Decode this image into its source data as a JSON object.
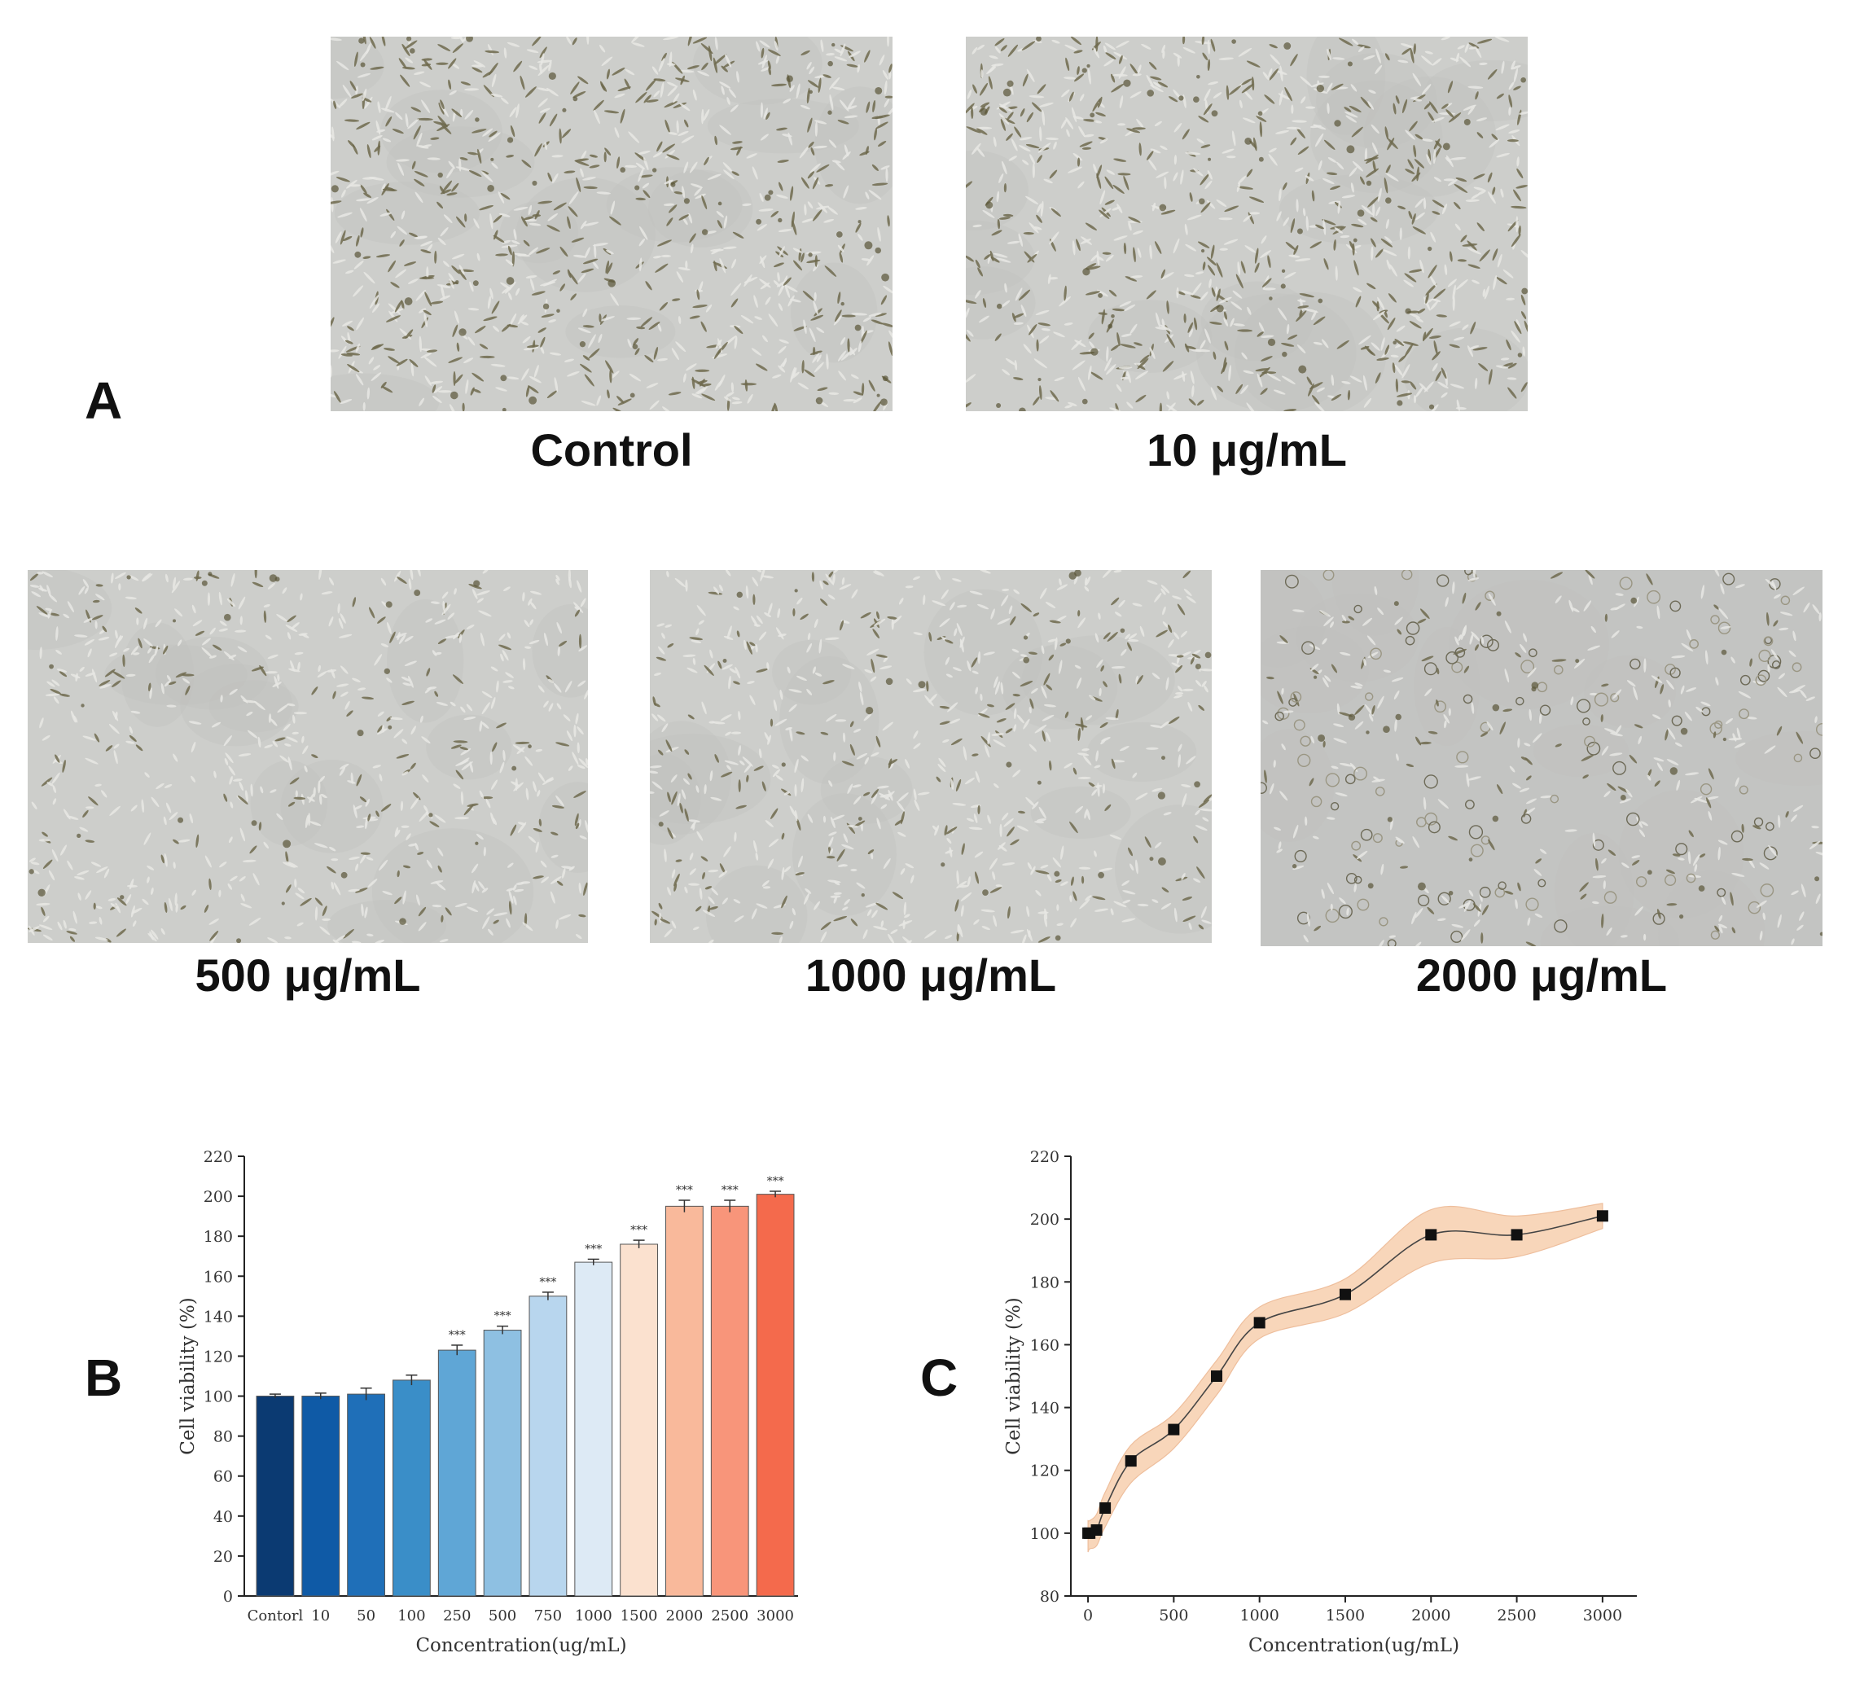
{
  "panel_a": {
    "letter": "A",
    "images": [
      {
        "caption": "Control",
        "kind": "dense"
      },
      {
        "caption": "10 μg/mL",
        "kind": "dense"
      },
      {
        "caption": "500 μg/mL",
        "kind": "sparse"
      },
      {
        "caption": "1000 μg/mL",
        "kind": "sparse"
      },
      {
        "caption": "2000 μg/mL",
        "kind": "round"
      }
    ]
  },
  "panel_b": {
    "letter": "B"
  },
  "panel_c": {
    "letter": "C"
  },
  "chart_data": [
    {
      "type": "bar",
      "panel": "B",
      "categories": [
        "Contorl",
        "10",
        "50",
        "100",
        "250",
        "500",
        "750",
        "1000",
        "1500",
        "2000",
        "2500",
        "3000"
      ],
      "values": [
        100,
        100,
        101,
        108,
        123,
        133,
        150,
        167,
        176,
        195,
        195,
        201
      ],
      "errors": [
        1,
        1.5,
        3,
        2.5,
        2.5,
        2,
        2,
        1.5,
        2,
        3,
        3,
        1.5
      ],
      "significance": [
        "",
        "",
        "",
        "",
        "***",
        "***",
        "***",
        "***",
        "***",
        "***",
        "***",
        "***"
      ],
      "colors": [
        "#0b3a72",
        "#0f5aa6",
        "#1f6fb8",
        "#3a8ec8",
        "#5fa6d6",
        "#8ec0e2",
        "#b8d6ee",
        "#ddeaf5",
        "#fbe1cf",
        "#f9b99b",
        "#f8957a",
        "#f46a4c"
      ],
      "xlabel": "Concentration(ug/mL)",
      "ylabel": "Cell viability (%)",
      "ylim": [
        0,
        220
      ],
      "yticks": [
        0,
        20,
        40,
        60,
        80,
        100,
        120,
        140,
        160,
        180,
        200,
        220
      ]
    },
    {
      "type": "line",
      "panel": "C",
      "x": [
        0,
        10,
        50,
        100,
        250,
        500,
        750,
        1000,
        1500,
        2000,
        2500,
        3000
      ],
      "y": [
        100,
        100,
        101,
        108,
        123,
        133,
        150,
        167,
        176,
        195,
        195,
        201
      ],
      "band_upper": [
        104,
        104,
        106,
        113,
        128,
        138,
        155,
        172,
        181,
        203,
        201,
        205
      ],
      "band_lower": [
        94,
        95,
        96,
        102,
        116,
        127,
        144,
        162,
        170,
        186,
        188,
        197
      ],
      "band_color": "#f6c9a3",
      "xlabel": "Concentration(ug/mL)",
      "ylabel": "Cell viability (%)",
      "xlim": [
        -100,
        3200
      ],
      "ylim": [
        80,
        220
      ],
      "xticks": [
        0,
        500,
        1000,
        1500,
        2000,
        2500,
        3000
      ],
      "yticks": [
        80,
        100,
        120,
        140,
        160,
        180,
        200,
        220
      ]
    }
  ]
}
